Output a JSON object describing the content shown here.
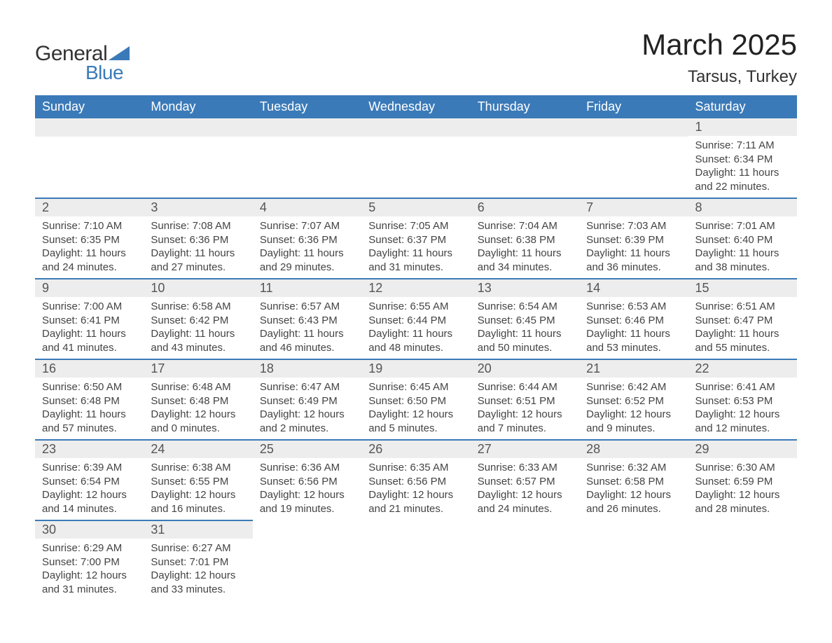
{
  "logo": {
    "text_general": "General",
    "text_blue": "Blue",
    "shape_color": "#3b7ab8"
  },
  "title": "March 2025",
  "location": "Tarsus, Turkey",
  "colors": {
    "header_bg": "#3b7ab8",
    "header_text": "#ffffff",
    "daynum_bg": "#ededed",
    "daynum_text": "#555555",
    "body_text": "#444444",
    "row_border": "#3b7ab8",
    "page_bg": "#ffffff"
  },
  "typography": {
    "title_fontsize": 42,
    "location_fontsize": 24,
    "header_fontsize": 18,
    "daynum_fontsize": 18,
    "info_fontsize": 15
  },
  "day_headers": [
    "Sunday",
    "Monday",
    "Tuesday",
    "Wednesday",
    "Thursday",
    "Friday",
    "Saturday"
  ],
  "weeks": [
    [
      null,
      null,
      null,
      null,
      null,
      null,
      {
        "n": "1",
        "sunrise": "Sunrise: 7:11 AM",
        "sunset": "Sunset: 6:34 PM",
        "daylight": "Daylight: 11 hours and 22 minutes."
      }
    ],
    [
      {
        "n": "2",
        "sunrise": "Sunrise: 7:10 AM",
        "sunset": "Sunset: 6:35 PM",
        "daylight": "Daylight: 11 hours and 24 minutes."
      },
      {
        "n": "3",
        "sunrise": "Sunrise: 7:08 AM",
        "sunset": "Sunset: 6:36 PM",
        "daylight": "Daylight: 11 hours and 27 minutes."
      },
      {
        "n": "4",
        "sunrise": "Sunrise: 7:07 AM",
        "sunset": "Sunset: 6:36 PM",
        "daylight": "Daylight: 11 hours and 29 minutes."
      },
      {
        "n": "5",
        "sunrise": "Sunrise: 7:05 AM",
        "sunset": "Sunset: 6:37 PM",
        "daylight": "Daylight: 11 hours and 31 minutes."
      },
      {
        "n": "6",
        "sunrise": "Sunrise: 7:04 AM",
        "sunset": "Sunset: 6:38 PM",
        "daylight": "Daylight: 11 hours and 34 minutes."
      },
      {
        "n": "7",
        "sunrise": "Sunrise: 7:03 AM",
        "sunset": "Sunset: 6:39 PM",
        "daylight": "Daylight: 11 hours and 36 minutes."
      },
      {
        "n": "8",
        "sunrise": "Sunrise: 7:01 AM",
        "sunset": "Sunset: 6:40 PM",
        "daylight": "Daylight: 11 hours and 38 minutes."
      }
    ],
    [
      {
        "n": "9",
        "sunrise": "Sunrise: 7:00 AM",
        "sunset": "Sunset: 6:41 PM",
        "daylight": "Daylight: 11 hours and 41 minutes."
      },
      {
        "n": "10",
        "sunrise": "Sunrise: 6:58 AM",
        "sunset": "Sunset: 6:42 PM",
        "daylight": "Daylight: 11 hours and 43 minutes."
      },
      {
        "n": "11",
        "sunrise": "Sunrise: 6:57 AM",
        "sunset": "Sunset: 6:43 PM",
        "daylight": "Daylight: 11 hours and 46 minutes."
      },
      {
        "n": "12",
        "sunrise": "Sunrise: 6:55 AM",
        "sunset": "Sunset: 6:44 PM",
        "daylight": "Daylight: 11 hours and 48 minutes."
      },
      {
        "n": "13",
        "sunrise": "Sunrise: 6:54 AM",
        "sunset": "Sunset: 6:45 PM",
        "daylight": "Daylight: 11 hours and 50 minutes."
      },
      {
        "n": "14",
        "sunrise": "Sunrise: 6:53 AM",
        "sunset": "Sunset: 6:46 PM",
        "daylight": "Daylight: 11 hours and 53 minutes."
      },
      {
        "n": "15",
        "sunrise": "Sunrise: 6:51 AM",
        "sunset": "Sunset: 6:47 PM",
        "daylight": "Daylight: 11 hours and 55 minutes."
      }
    ],
    [
      {
        "n": "16",
        "sunrise": "Sunrise: 6:50 AM",
        "sunset": "Sunset: 6:48 PM",
        "daylight": "Daylight: 11 hours and 57 minutes."
      },
      {
        "n": "17",
        "sunrise": "Sunrise: 6:48 AM",
        "sunset": "Sunset: 6:48 PM",
        "daylight": "Daylight: 12 hours and 0 minutes."
      },
      {
        "n": "18",
        "sunrise": "Sunrise: 6:47 AM",
        "sunset": "Sunset: 6:49 PM",
        "daylight": "Daylight: 12 hours and 2 minutes."
      },
      {
        "n": "19",
        "sunrise": "Sunrise: 6:45 AM",
        "sunset": "Sunset: 6:50 PM",
        "daylight": "Daylight: 12 hours and 5 minutes."
      },
      {
        "n": "20",
        "sunrise": "Sunrise: 6:44 AM",
        "sunset": "Sunset: 6:51 PM",
        "daylight": "Daylight: 12 hours and 7 minutes."
      },
      {
        "n": "21",
        "sunrise": "Sunrise: 6:42 AM",
        "sunset": "Sunset: 6:52 PM",
        "daylight": "Daylight: 12 hours and 9 minutes."
      },
      {
        "n": "22",
        "sunrise": "Sunrise: 6:41 AM",
        "sunset": "Sunset: 6:53 PM",
        "daylight": "Daylight: 12 hours and 12 minutes."
      }
    ],
    [
      {
        "n": "23",
        "sunrise": "Sunrise: 6:39 AM",
        "sunset": "Sunset: 6:54 PM",
        "daylight": "Daylight: 12 hours and 14 minutes."
      },
      {
        "n": "24",
        "sunrise": "Sunrise: 6:38 AM",
        "sunset": "Sunset: 6:55 PM",
        "daylight": "Daylight: 12 hours and 16 minutes."
      },
      {
        "n": "25",
        "sunrise": "Sunrise: 6:36 AM",
        "sunset": "Sunset: 6:56 PM",
        "daylight": "Daylight: 12 hours and 19 minutes."
      },
      {
        "n": "26",
        "sunrise": "Sunrise: 6:35 AM",
        "sunset": "Sunset: 6:56 PM",
        "daylight": "Daylight: 12 hours and 21 minutes."
      },
      {
        "n": "27",
        "sunrise": "Sunrise: 6:33 AM",
        "sunset": "Sunset: 6:57 PM",
        "daylight": "Daylight: 12 hours and 24 minutes."
      },
      {
        "n": "28",
        "sunrise": "Sunrise: 6:32 AM",
        "sunset": "Sunset: 6:58 PM",
        "daylight": "Daylight: 12 hours and 26 minutes."
      },
      {
        "n": "29",
        "sunrise": "Sunrise: 6:30 AM",
        "sunset": "Sunset: 6:59 PM",
        "daylight": "Daylight: 12 hours and 28 minutes."
      }
    ],
    [
      {
        "n": "30",
        "sunrise": "Sunrise: 6:29 AM",
        "sunset": "Sunset: 7:00 PM",
        "daylight": "Daylight: 12 hours and 31 minutes."
      },
      {
        "n": "31",
        "sunrise": "Sunrise: 6:27 AM",
        "sunset": "Sunset: 7:01 PM",
        "daylight": "Daylight: 12 hours and 33 minutes."
      },
      null,
      null,
      null,
      null,
      null
    ]
  ]
}
